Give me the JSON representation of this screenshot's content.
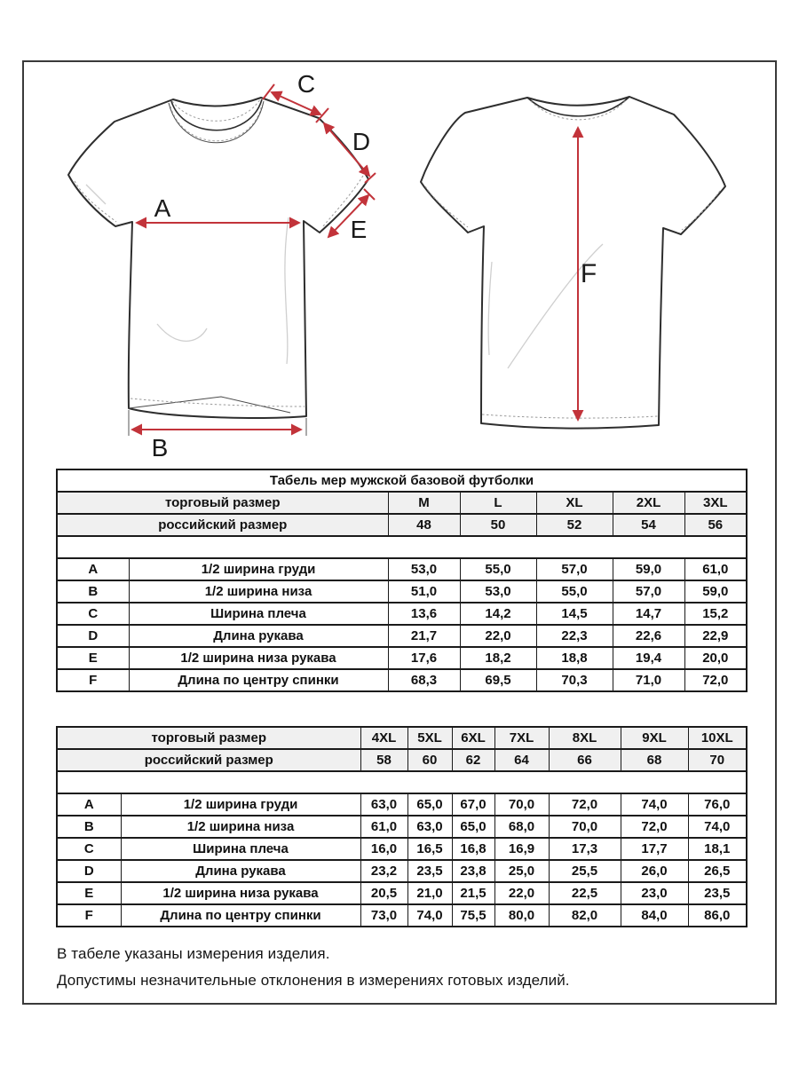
{
  "colors": {
    "arrow": "#c2333a",
    "outline": "#2e2e2e",
    "table_border": "#1a1a1a",
    "header_bg": "#f0f0f0",
    "frame_border": "#3a3a3a"
  },
  "diagram": {
    "labels": {
      "a": "A",
      "b": "B",
      "c": "C",
      "d": "D",
      "e": "E",
      "f": "F"
    }
  },
  "table1": {
    "title": "Табель мер мужской базовой футболки",
    "trade_size_label": "торговый размер",
    "ru_size_label": "российский размер",
    "trade_sizes": [
      "M",
      "L",
      "XL",
      "2XL",
      "3XL"
    ],
    "ru_sizes": [
      "48",
      "50",
      "52",
      "54",
      "56"
    ],
    "rows": [
      {
        "letter": "A",
        "name": "1/2 ширина груди",
        "values": [
          "53,0",
          "55,0",
          "57,0",
          "59,0",
          "61,0"
        ]
      },
      {
        "letter": "B",
        "name": "1/2 ширина низа",
        "values": [
          "51,0",
          "53,0",
          "55,0",
          "57,0",
          "59,0"
        ]
      },
      {
        "letter": "C",
        "name": "Ширина плеча",
        "values": [
          "13,6",
          "14,2",
          "14,5",
          "14,7",
          "15,2"
        ]
      },
      {
        "letter": "D",
        "name": "Длина рукава",
        "values": [
          "21,7",
          "22,0",
          "22,3",
          "22,6",
          "22,9"
        ]
      },
      {
        "letter": "E",
        "name": "1/2 ширина низа рукава",
        "values": [
          "17,6",
          "18,2",
          "18,8",
          "19,4",
          "20,0"
        ]
      },
      {
        "letter": "F",
        "name": "Длина по центру спинки",
        "values": [
          "68,3",
          "69,5",
          "70,3",
          "71,0",
          "72,0"
        ]
      }
    ]
  },
  "table2": {
    "trade_size_label": "торговый размер",
    "ru_size_label": "российский размер",
    "trade_sizes": [
      "4XL",
      "5XL",
      "6XL",
      "7XL",
      "8XL",
      "9XL",
      "10XL"
    ],
    "ru_sizes": [
      "58",
      "60",
      "62",
      "64",
      "66",
      "68",
      "70"
    ],
    "rows": [
      {
        "letter": "A",
        "name": "1/2 ширина груди",
        "values": [
          "63,0",
          "65,0",
          "67,0",
          "70,0",
          "72,0",
          "74,0",
          "76,0"
        ]
      },
      {
        "letter": "B",
        "name": "1/2 ширина низа",
        "values": [
          "61,0",
          "63,0",
          "65,0",
          "68,0",
          "70,0",
          "72,0",
          "74,0"
        ]
      },
      {
        "letter": "C",
        "name": "Ширина плеча",
        "values": [
          "16,0",
          "16,5",
          "16,8",
          "16,9",
          "17,3",
          "17,7",
          "18,1"
        ]
      },
      {
        "letter": "D",
        "name": "Длина рукава",
        "values": [
          "23,2",
          "23,5",
          "23,8",
          "25,0",
          "25,5",
          "26,0",
          "26,5"
        ]
      },
      {
        "letter": "E",
        "name": "1/2 ширина низа рукава",
        "values": [
          "20,5",
          "21,0",
          "21,5",
          "22,0",
          "22,5",
          "23,0",
          "23,5"
        ]
      },
      {
        "letter": "F",
        "name": "Длина по центру спинки",
        "values": [
          "73,0",
          "74,0",
          "75,5",
          "80,0",
          "82,0",
          "84,0",
          "86,0"
        ]
      }
    ]
  },
  "notes": {
    "line1": "В табеле указаны измерения изделия.",
    "line2": "Допустимы незначительные отклонения в измерениях готовых изделий."
  }
}
